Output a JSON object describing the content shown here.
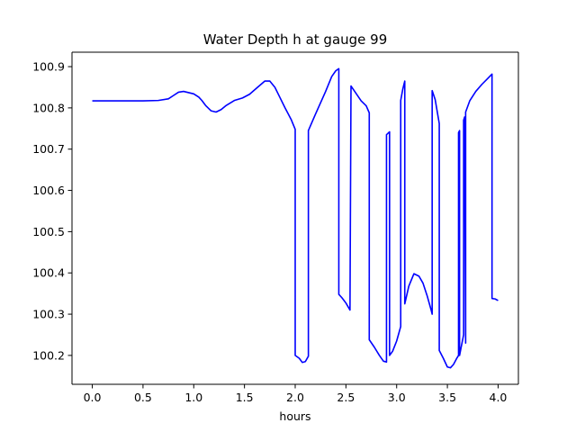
{
  "chart_data": {
    "type": "line",
    "title": "Water Depth h at gauge 99",
    "xlabel": "hours",
    "ylabel": "",
    "xlim": [
      -0.2,
      4.2
    ],
    "ylim": [
      100.13,
      100.935
    ],
    "grid": false,
    "legend": "none",
    "x_ticks": [
      0.0,
      0.5,
      1.0,
      1.5,
      2.0,
      2.5,
      3.0,
      3.5,
      4.0
    ],
    "x_tick_labels": [
      "0.0",
      "0.5",
      "1.0",
      "1.5",
      "2.0",
      "2.5",
      "3.0",
      "3.5",
      "4.0"
    ],
    "y_ticks": [
      100.2,
      100.3,
      100.4,
      100.5,
      100.6,
      100.7,
      100.8,
      100.9
    ],
    "y_tick_labels": [
      "100.2",
      "100.3",
      "100.4",
      "100.5",
      "100.6",
      "100.7",
      "100.8",
      "100.9"
    ],
    "series": [
      {
        "color": "#0000ff",
        "x": [
          0.0,
          0.3,
          0.5,
          0.65,
          0.75,
          0.8,
          0.85,
          0.9,
          0.95,
          1.0,
          1.05,
          1.08,
          1.12,
          1.17,
          1.22,
          1.27,
          1.32,
          1.4,
          1.48,
          1.55,
          1.62,
          1.7,
          1.75,
          1.8,
          1.85,
          1.9,
          1.96,
          2.0,
          2.0,
          2.04,
          2.07,
          2.1,
          2.13,
          2.13,
          2.2,
          2.3,
          2.36,
          2.4,
          2.43,
          2.43,
          2.46,
          2.5,
          2.54,
          2.55,
          2.6,
          2.65,
          2.7,
          2.73,
          2.73,
          2.78,
          2.83,
          2.87,
          2.9,
          2.9,
          2.93,
          2.93,
          2.96,
          3.0,
          3.04,
          3.04,
          3.06,
          3.08,
          3.08,
          3.12,
          3.17,
          3.22,
          3.26,
          3.3,
          3.34,
          3.35,
          3.35,
          3.38,
          3.42,
          3.42,
          3.46,
          3.5,
          3.53,
          3.56,
          3.59,
          3.61,
          3.61,
          3.62,
          3.62,
          3.64,
          3.66,
          3.66,
          3.67,
          3.68,
          3.68,
          3.72,
          3.78,
          3.84,
          3.9,
          3.94,
          3.94,
          3.97,
          4.0
        ],
        "y": [
          100.817,
          100.817,
          100.817,
          100.818,
          100.822,
          100.83,
          100.838,
          100.84,
          100.837,
          100.834,
          100.826,
          100.818,
          100.805,
          100.793,
          100.79,
          100.796,
          100.806,
          100.818,
          100.824,
          100.833,
          100.848,
          100.865,
          100.865,
          100.85,
          100.825,
          100.8,
          100.772,
          100.748,
          100.2,
          100.193,
          100.183,
          100.185,
          100.198,
          100.745,
          100.785,
          100.84,
          100.876,
          100.89,
          100.895,
          100.348,
          100.34,
          100.327,
          100.31,
          100.853,
          100.835,
          100.817,
          100.805,
          100.788,
          100.238,
          100.22,
          100.2,
          100.186,
          100.184,
          100.735,
          100.742,
          100.2,
          100.21,
          100.235,
          100.27,
          100.818,
          100.845,
          100.865,
          100.325,
          100.368,
          100.398,
          100.392,
          100.375,
          100.345,
          100.31,
          100.3,
          100.842,
          100.82,
          100.762,
          100.212,
          100.193,
          100.172,
          100.17,
          100.178,
          100.192,
          100.2,
          100.74,
          100.745,
          100.2,
          100.225,
          100.25,
          100.77,
          100.778,
          100.23,
          100.79,
          100.817,
          100.84,
          100.857,
          100.872,
          100.882,
          100.338,
          100.337,
          100.333
        ]
      }
    ]
  }
}
